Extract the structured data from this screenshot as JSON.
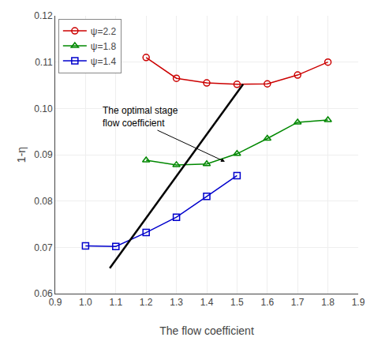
{
  "chart_data": {
    "type": "line",
    "title": "",
    "x_label": "The flow coefficient",
    "y_label": "1-η",
    "xlim": [
      0.9,
      1.9
    ],
    "ylim": [
      0.06,
      0.12
    ],
    "xticks": [
      0.9,
      {
        "value": 1.0,
        "label": "1.0"
      },
      1.1,
      1.2,
      1.3,
      1.4,
      1.5,
      1.6,
      1.7,
      1.8,
      1.9
    ],
    "yticks": [
      0.06,
      0.07,
      0.08,
      0.09,
      {
        "value": 0.1,
        "label": "0.10"
      },
      0.11,
      0.12
    ],
    "grid": true,
    "legend": "upper left",
    "series": [
      {
        "name": "ψ=2.2",
        "color": "#cc0000",
        "marker": "circle",
        "x": [
          1.2,
          1.3,
          1.4,
          1.5,
          1.6,
          1.7,
          1.8
        ],
        "values": [
          0.111,
          0.1065,
          0.1055,
          0.1052,
          0.1053,
          0.1072,
          0.11
        ]
      },
      {
        "name": "ψ=1.8",
        "color": "#008800",
        "marker": "triangle-up",
        "x": [
          1.2,
          1.3,
          1.4,
          1.5,
          1.6,
          1.7,
          1.8
        ],
        "values": [
          0.0888,
          0.0878,
          0.088,
          0.0902,
          0.0935,
          0.097,
          0.0975
        ]
      },
      {
        "name": "ψ=1.4",
        "color": "#0000cc",
        "marker": "square",
        "x": [
          1.0,
          1.1,
          1.2,
          1.3,
          1.4,
          1.5
        ],
        "values": [
          0.0703,
          0.0702,
          0.0732,
          0.0765,
          0.081,
          0.0855
        ]
      },
      {
        "color": "#000000",
        "marker": "none",
        "x": [
          1.08,
          1.52
        ],
        "values": [
          0.0655,
          0.1052
        ]
      }
    ],
    "annotations": [
      {
        "text": "The optimal stage\nflow coefficient",
        "x": 1.05,
        "y": 0.101,
        "arrow_x": 1.46,
        "arrow_y": 0.0885
      }
    ]
  }
}
